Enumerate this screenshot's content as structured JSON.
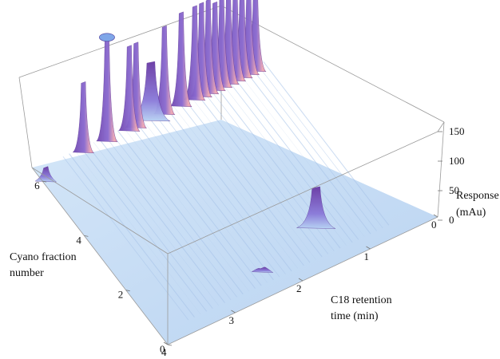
{
  "colors": {
    "base": "#c6dcf4",
    "base_shadow": "#a9c6ea",
    "peak_low": "#b7d2f3",
    "peak_mid": "#7f6ad6",
    "peak_high": "#6a3aa4",
    "highlight": "#f0a9b3",
    "box": "#9a9a9a"
  },
  "chart_data": {
    "type": "surface",
    "title": "",
    "axes": {
      "x": {
        "label": [
          "C18 retention",
          "time (min)"
        ],
        "range": [
          0,
          4
        ],
        "ticks": [
          "0",
          "1",
          "2",
          "3",
          "4"
        ]
      },
      "y": {
        "label": [
          "Cyano fraction",
          "number"
        ],
        "range": [
          0,
          6.5
        ],
        "ticks": [
          "0",
          "2",
          "4",
          "6"
        ]
      },
      "z": {
        "label": [
          "Response",
          "(mAu)"
        ],
        "range": [
          0,
          160
        ],
        "ticks": [
          "0",
          "50",
          "100",
          "150"
        ]
      }
    },
    "peaks": [
      {
        "t": 3.95,
        "f": 6.0,
        "h": 25
      },
      {
        "t": 3.3,
        "f": 6.3,
        "h": 120
      },
      {
        "t": 2.95,
        "f": 6.3,
        "h": 175
      },
      {
        "t": 2.62,
        "f": 6.3,
        "h": 145
      },
      {
        "t": 2.52,
        "f": 6.3,
        "h": 145
      },
      {
        "t": 2.3,
        "f": 6.3,
        "h": 100
      },
      {
        "t": 2.1,
        "f": 6.3,
        "h": 150
      },
      {
        "t": 1.85,
        "f": 6.3,
        "h": 160
      },
      {
        "t": 1.65,
        "f": 6.3,
        "h": 160
      },
      {
        "t": 1.55,
        "f": 6.3,
        "h": 160
      },
      {
        "t": 1.45,
        "f": 6.3,
        "h": 160
      },
      {
        "t": 1.35,
        "f": 6.3,
        "h": 150
      },
      {
        "t": 1.25,
        "f": 6.3,
        "h": 155
      },
      {
        "t": 1.15,
        "f": 6.3,
        "h": 155
      },
      {
        "t": 1.05,
        "f": 6.3,
        "h": 150
      },
      {
        "t": 0.95,
        "f": 6.3,
        "h": 150
      },
      {
        "t": 0.85,
        "f": 6.3,
        "h": 140
      },
      {
        "t": 0.75,
        "f": 6.3,
        "h": 140
      },
      {
        "t": 1.4,
        "f": 1.3,
        "h": 70
      },
      {
        "t": 2.35,
        "f": 0.8,
        "h": 8
      }
    ]
  }
}
